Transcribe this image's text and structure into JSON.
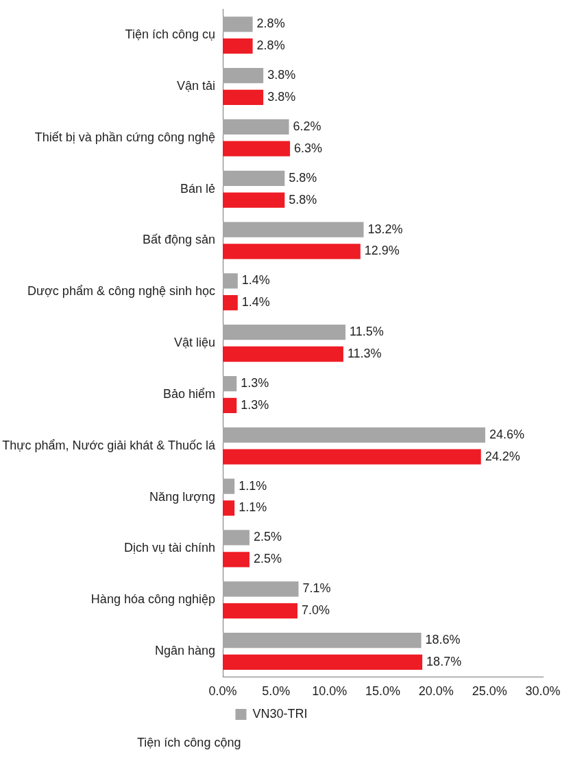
{
  "chart_data": {
    "type": "bar",
    "orientation": "horizontal",
    "categories": [
      "Tiện ích công cụ",
      "Vận tải",
      "Thiết bị và phần cứng công nghệ",
      "Bán lẻ",
      "Bất động sản",
      "Dược phẩm & công nghệ sinh học",
      "Vật liệu",
      "Bảo hiểm",
      "Thực phẩm, Nước giải khát & Thuốc lá",
      "Năng lượng",
      "Dịch vụ tài chính",
      "Hàng hóa công nghiệp",
      "Ngân hàng"
    ],
    "series": [
      {
        "name": "VN30-TRI",
        "color": "#a6a6a6",
        "values": [
          2.8,
          3.8,
          6.2,
          5.8,
          13.2,
          1.4,
          11.5,
          1.3,
          24.6,
          1.1,
          2.5,
          7.1,
          18.6
        ],
        "value_labels": [
          "2.8%",
          "3.8%",
          "6.2%",
          "5.8%",
          "13.2%",
          "1.4%",
          "11.5%",
          "1.3%",
          "24.6%",
          "1.1%",
          "2.5%",
          "7.1%",
          "18.6%"
        ]
      },
      {
        "color": "#ee1c25",
        "values": [
          2.8,
          3.8,
          6.3,
          5.8,
          12.9,
          1.4,
          11.3,
          1.3,
          24.2,
          1.1,
          2.5,
          7.0,
          18.7
        ],
        "value_labels": [
          "2.8%",
          "3.8%",
          "6.3%",
          "5.8%",
          "12.9%",
          "1.4%",
          "11.3%",
          "1.3%",
          "24.2%",
          "1.1%",
          "2.5%",
          "7.0%",
          "18.7%"
        ]
      }
    ],
    "xlim": [
      0,
      30
    ],
    "xticks": [
      {
        "value": 0,
        "label": "0.0%"
      },
      {
        "value": 5,
        "label": "5.0%"
      },
      {
        "value": 10,
        "label": "10.0%"
      },
      {
        "value": 15,
        "label": "15.0%"
      },
      {
        "value": 20,
        "label": "20.0%"
      },
      {
        "value": 25,
        "label": "25.0%"
      },
      {
        "value": 30,
        "label": "30.0%"
      }
    ],
    "grid": false,
    "legend": "bottom",
    "annotations": [
      "Tiện ích công cộng"
    ]
  }
}
